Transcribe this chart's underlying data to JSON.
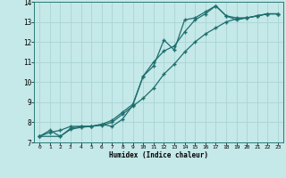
{
  "title": "",
  "xlabel": "Humidex (Indice chaleur)",
  "ylabel": "",
  "bg_color": "#c5e8e8",
  "grid_color": "#aad4d4",
  "line_color": "#1e6e6e",
  "xlim": [
    -0.5,
    23.5
  ],
  "ylim": [
    7,
    14
  ],
  "xticks": [
    0,
    1,
    2,
    3,
    4,
    5,
    6,
    7,
    8,
    9,
    10,
    11,
    12,
    13,
    14,
    15,
    16,
    17,
    18,
    19,
    20,
    21,
    22,
    23
  ],
  "yticks": [
    7,
    8,
    9,
    10,
    11,
    12,
    13,
    14
  ],
  "line1_x": [
    0,
    1,
    2,
    3,
    4,
    5,
    6,
    7,
    8,
    9,
    10,
    11,
    12,
    13,
    14,
    15,
    16,
    17,
    18,
    19,
    20,
    21,
    22,
    23
  ],
  "line1_y": [
    7.3,
    7.6,
    7.3,
    7.7,
    7.8,
    7.8,
    7.9,
    8.1,
    8.5,
    8.9,
    10.3,
    10.8,
    12.1,
    11.6,
    13.1,
    13.2,
    13.5,
    13.8,
    13.3,
    13.1,
    13.2,
    13.3,
    13.4,
    13.4
  ],
  "line2_x": [
    0,
    1,
    2,
    3,
    4,
    5,
    6,
    7,
    8,
    9,
    10,
    11,
    12,
    13,
    14,
    15,
    16,
    17,
    18,
    19,
    20,
    21,
    22,
    23
  ],
  "line2_y": [
    7.3,
    7.5,
    7.6,
    7.8,
    7.8,
    7.8,
    7.85,
    8.0,
    8.4,
    8.8,
    9.2,
    9.7,
    10.4,
    10.9,
    11.5,
    12.0,
    12.4,
    12.7,
    13.0,
    13.15,
    13.2,
    13.3,
    13.4,
    13.4
  ],
  "line3_x": [
    0,
    2,
    3,
    4,
    5,
    6,
    7,
    8,
    9,
    10,
    11,
    12,
    13,
    14,
    15,
    16,
    17,
    18,
    19,
    20,
    21,
    22,
    23
  ],
  "line3_y": [
    7.3,
    7.3,
    7.65,
    7.75,
    7.8,
    7.9,
    7.8,
    8.15,
    8.85,
    10.3,
    11.0,
    11.55,
    11.8,
    12.5,
    13.1,
    13.4,
    13.8,
    13.3,
    13.2,
    13.2,
    13.3,
    13.4,
    13.4
  ]
}
